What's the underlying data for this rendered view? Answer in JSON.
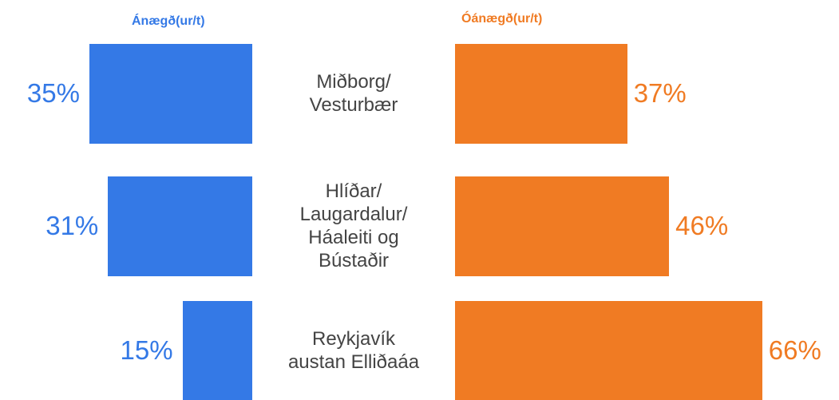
{
  "chart_data": {
    "type": "butterfly",
    "categories": [
      "Miðborg/\nVesturbær",
      "Hlíðar/\nLaugardalur/\nHáaleiti og\nBústaðir",
      "Reykjavík\naustan Elliðaáa"
    ],
    "series": [
      {
        "name": "Ánægð(ur/t)",
        "color": "#3479e6",
        "values": [
          35,
          31,
          15
        ],
        "value_labels": [
          "35%",
          "31%",
          "15%"
        ]
      },
      {
        "name": "Óánægð(ur/t)",
        "color": "#f07b23",
        "values": [
          37,
          46,
          66
        ],
        "value_labels": [
          "37%",
          "46%",
          "66%"
        ]
      }
    ]
  }
}
